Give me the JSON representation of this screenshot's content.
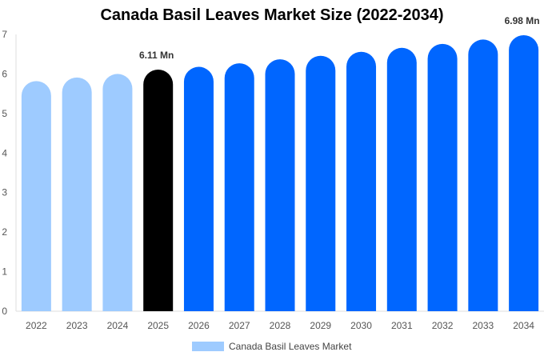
{
  "chart_data": {
    "type": "bar",
    "title": "Canada Basil Leaves Market Size (2022-2034)",
    "xlabel": "",
    "ylabel": "",
    "ylim": [
      0,
      7
    ],
    "yticks": [
      0,
      1,
      2,
      3,
      4,
      5,
      6,
      7
    ],
    "categories": [
      "2022",
      "2023",
      "2024",
      "2025",
      "2026",
      "2027",
      "2028",
      "2029",
      "2030",
      "2031",
      "2032",
      "2033",
      "2034"
    ],
    "series": [
      {
        "name": "Canada Basil Leaves Market",
        "values": [
          5.82,
          5.91,
          6.0,
          6.11,
          6.18,
          6.27,
          6.37,
          6.46,
          6.56,
          6.66,
          6.76,
          6.87,
          6.98
        ]
      }
    ],
    "data_labels": [
      {
        "category": "2025",
        "text": "6.11 Mn"
      },
      {
        "category": "2034",
        "text": "6.98 Mn"
      }
    ],
    "colors": {
      "historical": "#9ecbff",
      "current": "#000000",
      "forecast": "#0066ff"
    },
    "historical_categories": [
      "2022",
      "2023",
      "2024"
    ],
    "current_category": "2025",
    "grid": false,
    "legend_position": "bottom"
  }
}
